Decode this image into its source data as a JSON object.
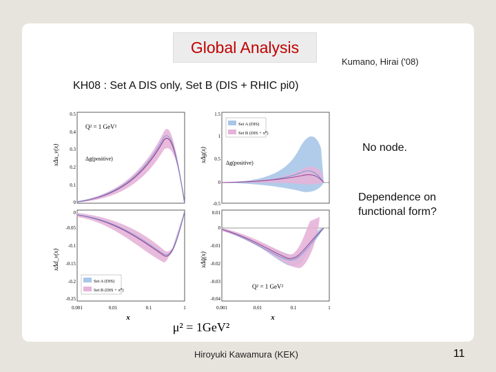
{
  "slide": {
    "title": "Global Analysis",
    "authors": "Kumano, Hirai ('08)",
    "subtitle": "KH08 : Set A DIS only, Set B (DIS + RHIC pi0)",
    "note_1": "No node.",
    "note_2_line1": "Dependence on",
    "note_2_line2": "functional form?",
    "footer": "Hiroyuki Kawamura (KEK)",
    "page_number": "11"
  },
  "figure": {
    "colors": {
      "set_a": "#6d9bd1",
      "set_b": "#c66ab0",
      "band_a": "#a9c6e8",
      "band_b": "#e5b4d9"
    },
    "bottom_label": "μ² = 1GeV²",
    "x_label": "x",
    "x_ticks": [
      "0.001",
      "0.01",
      "0.1",
      "1"
    ],
    "panels": [
      {
        "ylabel": "xΔu_v(x)",
        "annotation_q2": "Q² = 1 GeV²",
        "annotation": "Δg(positive)",
        "y_ticks": [
          "0.5",
          "0.4",
          "0.3",
          "0.2",
          "0.1",
          "0"
        ]
      },
      {
        "ylabel": "xΔg(x)",
        "annotation": "Δg(positive)",
        "y_ticks": [
          "1.5",
          "1",
          "0.5",
          "0",
          "-0.5"
        ],
        "legend": [
          "Set A (DIS)",
          "Set B (DIS + π⁰)"
        ]
      },
      {
        "ylabel": "xΔd_v(x)",
        "y_ticks": [
          "0",
          "-0.05",
          "-0.1",
          "-0.15",
          "-0.2",
          "-0.25"
        ],
        "legend": [
          "Set A (DIS)",
          "Set B (DIS + π⁰)"
        ]
      },
      {
        "ylabel": "xΔq̄(x)",
        "annotation_q2": "Q² = 1 GeV²",
        "y_ticks": [
          "0.01",
          "0",
          "-0.01",
          "-0.02",
          "-0.03",
          "-0.04"
        ]
      }
    ]
  }
}
